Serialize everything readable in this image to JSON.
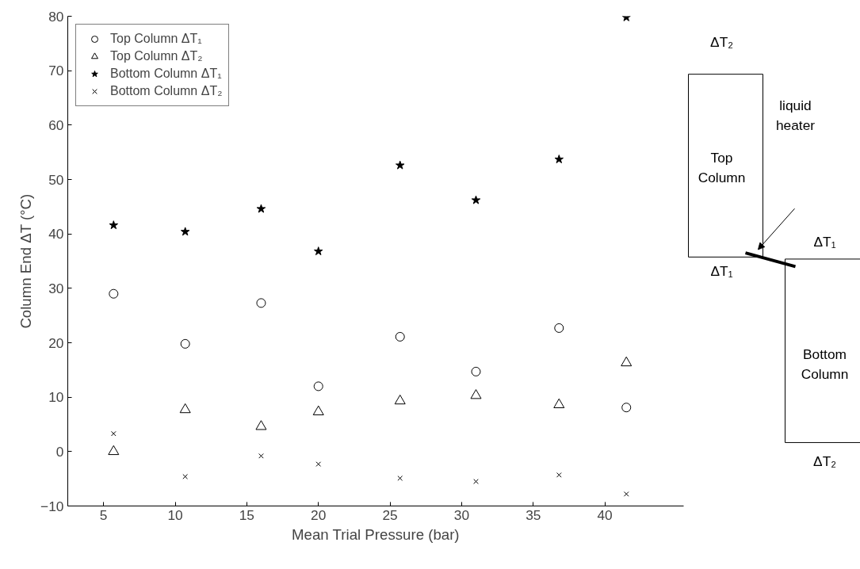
{
  "chart_data": {
    "type": "scatter",
    "xlabel": "Mean Trial Pressure (bar)",
    "ylabel": "Column End ΔT (°C)",
    "x": [
      5.7,
      10.7,
      16,
      20,
      25.7,
      31,
      36.8,
      41.5
    ],
    "series": [
      {
        "name": "Top Column ΔT₁",
        "color": "#000000",
        "marker": "circle",
        "values": [
          29.0,
          19.8,
          27.3,
          12.0,
          21.1,
          14.7,
          22.7,
          8.1
        ]
      },
      {
        "name": "Top Column ΔT₂",
        "color": "#000000",
        "marker": "triangle",
        "values": [
          0.0,
          7.7,
          4.6,
          7.3,
          9.3,
          10.3,
          8.6,
          16.3
        ]
      },
      {
        "name": "Bottom Column ΔT₁",
        "color": "#000000",
        "marker": "star",
        "values": [
          41.6,
          40.4,
          44.6,
          36.8,
          52.6,
          46.2,
          53.7,
          79.8
        ]
      },
      {
        "name": "Bottom Column ΔT₂",
        "color": "#000000",
        "marker": "cross",
        "values": [
          3.3,
          -4.6,
          -0.8,
          -2.3,
          -4.9,
          -5.5,
          -4.3,
          -7.8
        ]
      }
    ],
    "xlim": [
      2.5,
      45.5
    ],
    "ylim": [
      -10,
      80
    ],
    "xticks": [
      5,
      10,
      15,
      20,
      25,
      30,
      35,
      40
    ],
    "yticks": [
      -10,
      0,
      10,
      20,
      30,
      40,
      50,
      60,
      70,
      80
    ],
    "grid": false,
    "legend": "top left",
    "annotations": [
      "ΔT₂",
      "Top\nColumn",
      "ΔT₁",
      "liquid\nheater",
      "ΔT₁",
      "Bottom\nColumn",
      "ΔT₂"
    ]
  }
}
